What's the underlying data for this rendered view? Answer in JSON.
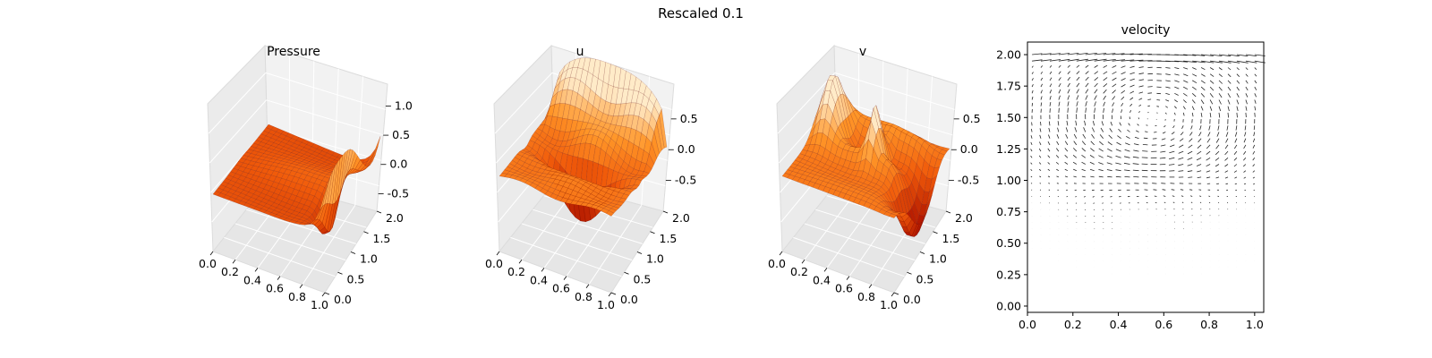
{
  "figure": {
    "suptitle": "Rescaled 0.1"
  },
  "chart_data": [
    {
      "type": "surface3d",
      "title": "Pressure",
      "colormap": "gist_heat / orange-red",
      "xlabel": "",
      "ylabel": "",
      "zlabel": "",
      "xticks": [
        "0.0",
        "0.2",
        "0.4",
        "0.6",
        "0.8",
        "1.0"
      ],
      "yticks": [
        "0.0",
        "0.5",
        "1.0",
        "1.5",
        "2.0"
      ],
      "zticks": [
        "-0.5",
        "0.0",
        "0.5",
        "1.0"
      ],
      "xlim": [
        0,
        1
      ],
      "ylim": [
        0,
        2
      ],
      "zlim": [
        -0.8,
        1.2
      ],
      "features": "mostly flat plane near 0 with a ridge near y=1, upturn to ~1.0 at x=1, dip to ~-0.5 near x=0.9"
    },
    {
      "type": "surface3d",
      "title": "u",
      "colormap": "gist_heat / orange-red",
      "xlabel": "",
      "ylabel": "",
      "zlabel": "",
      "xticks": [
        "0.0",
        "0.2",
        "0.4",
        "0.6",
        "0.8",
        "1.0"
      ],
      "yticks": [
        "0.0",
        "0.5",
        "1.0",
        "1.5",
        "2.0"
      ],
      "zticks": [
        "-0.5",
        "0.0",
        "0.5"
      ],
      "xlim": [
        0,
        1
      ],
      "ylim": [
        0,
        2
      ],
      "zlim": [
        -1.0,
        0.9
      ],
      "features": "high wall near lid (y=2) reaching ~0.9, negative spikes to ~-0.9 near y=1"
    },
    {
      "type": "surface3d",
      "title": "v",
      "colormap": "gist_heat / orange-red",
      "xlabel": "",
      "ylabel": "",
      "zlabel": "",
      "xticks": [
        "0.0",
        "0.2",
        "0.4",
        "0.6",
        "0.8",
        "1.0"
      ],
      "yticks": [
        "0.0",
        "0.5",
        "1.0",
        "1.5",
        "2.0"
      ],
      "zticks": [
        "-0.5",
        "0.0",
        "0.5"
      ],
      "xlim": [
        0,
        1
      ],
      "ylim": [
        0,
        2
      ],
      "zlim": [
        -1.0,
        0.9
      ],
      "features": "positive spikes near x=0 side upper region (~0.9), negative band near x=1 (~-0.8)"
    },
    {
      "type": "quiver",
      "title": "velocity",
      "xlabel": "",
      "ylabel": "",
      "xticks": [
        "0.0",
        "0.2",
        "0.4",
        "0.6",
        "0.8",
        "1.0"
      ],
      "yticks": [
        "0.00",
        "0.25",
        "0.50",
        "0.75",
        "1.00",
        "1.25",
        "1.50",
        "1.75",
        "2.00"
      ],
      "xlim": [
        0,
        1.04
      ],
      "ylim": [
        -0.05,
        2.1
      ],
      "grid": false,
      "features": "lid-driven cavity: primary clockwise vortex centered near (0.55, 1.55), weaker secondary vortex near (0.5, 0.85), near-zero flow at bottom"
    }
  ]
}
